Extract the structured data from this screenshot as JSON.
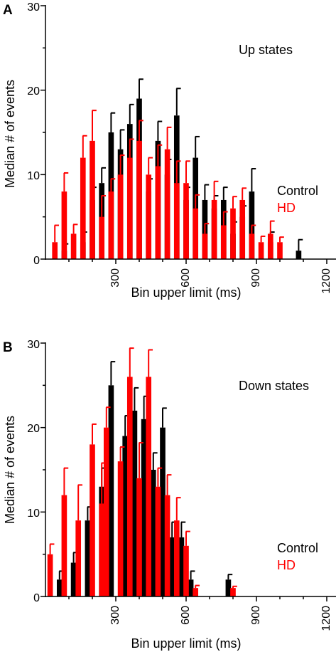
{
  "colors": {
    "control": "#000000",
    "hd": "#ff0000",
    "axis": "#000000"
  },
  "chart_data": [
    {
      "type": "bar",
      "panel_label": "A",
      "title": "Up states",
      "xlabel": "Bin upper limit (ms)",
      "ylabel": "Median # of events",
      "xlim": [
        0,
        1260
      ],
      "ylim": [
        0,
        30
      ],
      "xticks": [
        300,
        600,
        900,
        1200
      ],
      "xtick_labels": [
        "300",
        "600",
        "900",
        "1200"
      ],
      "yticks": [
        0,
        10,
        20,
        30
      ],
      "ytick_labels": [
        "0",
        "10",
        "20",
        "30"
      ],
      "legend": {
        "position": "right",
        "items": [
          "Control",
          "HD"
        ]
      },
      "bin_width_ms": 40,
      "series": [
        {
          "name": "Control",
          "x": [
            80,
            160,
            200,
            240,
            280,
            320,
            360,
            400,
            440,
            480,
            520,
            560,
            600,
            640,
            680,
            720,
            760,
            800,
            840,
            880,
            960,
            1080
          ],
          "values": [
            1,
            2,
            7,
            9,
            15,
            13,
            16,
            19,
            8,
            14,
            10,
            17,
            7,
            12,
            7,
            6,
            7,
            3,
            5,
            8,
            2,
            1
          ],
          "errors": [
            0.8,
            1.2,
            1.5,
            1.8,
            2.3,
            2.3,
            2.3,
            2.3,
            1.5,
            2.3,
            1.8,
            3.2,
            1.5,
            2.5,
            1.8,
            1.5,
            1.5,
            1.4,
            1.3,
            2.7,
            1.2,
            1.3
          ]
        },
        {
          "name": "HD",
          "x": [
            40,
            80,
            120,
            160,
            200,
            240,
            280,
            320,
            360,
            400,
            440,
            480,
            520,
            560,
            600,
            640,
            680,
            720,
            760,
            800,
            840,
            880,
            920,
            960,
            1000
          ],
          "values": [
            2,
            8,
            3,
            12,
            14,
            5,
            8,
            10,
            12,
            14,
            10,
            11,
            13,
            9,
            9,
            6,
            3,
            7,
            4,
            6,
            7,
            3,
            2,
            3,
            2
          ],
          "errors": [
            2,
            2.2,
            1.1,
            2.6,
            3.6,
            2.5,
            1.5,
            2.3,
            2.2,
            2.4,
            2,
            2.5,
            2.6,
            2.6,
            2.6,
            1.6,
            1.2,
            2.2,
            1.6,
            1.4,
            1.4,
            1,
            0.7,
            1.5,
            0.6
          ]
        }
      ]
    },
    {
      "type": "bar",
      "panel_label": "B",
      "title": "Down states",
      "xlabel": "Bin upper limit (ms)",
      "ylabel": "Median # of events",
      "xlim": [
        0,
        1260
      ],
      "ylim": [
        0,
        30
      ],
      "xticks": [
        300,
        600,
        900,
        1200
      ],
      "xtick_labels": [
        "300",
        "600",
        "900",
        "1200"
      ],
      "yticks": [
        0,
        10,
        20,
        30
      ],
      "ytick_labels": [
        "0",
        "10",
        "20",
        "30"
      ],
      "legend": {
        "position": "right",
        "items": [
          "Control",
          "HD"
        ]
      },
      "bin_width_ms": 40,
      "series": [
        {
          "name": "Control",
          "x": [
            60,
            120,
            180,
            240,
            280,
            340,
            380,
            420,
            460,
            500,
            540,
            580,
            620,
            780
          ],
          "values": [
            2,
            4,
            9,
            13,
            25,
            19,
            22,
            21,
            15,
            20,
            7,
            7,
            2,
            2
          ],
          "errors": [
            1,
            1.2,
            1.6,
            2.2,
            2.8,
            2.4,
            2.7,
            2.7,
            2,
            2.3,
            1.8,
            1.8,
            1,
            0.6
          ]
        },
        {
          "name": "HD",
          "x": [
            20,
            80,
            140,
            200,
            240,
            260,
            320,
            360,
            400,
            440,
            480,
            520,
            560,
            600,
            640,
            800
          ],
          "values": [
            5,
            12,
            9,
            18,
            11,
            20,
            16,
            26,
            14,
            26,
            13,
            12,
            9,
            6,
            1,
            1
          ],
          "errors": [
            1.2,
            3.2,
            4.2,
            2.4,
            4.8,
            2.4,
            1.7,
            3.4,
            4.2,
            3.2,
            2.2,
            2.4,
            2.7,
            1.7,
            0.3,
            0.2
          ]
        }
      ]
    }
  ]
}
